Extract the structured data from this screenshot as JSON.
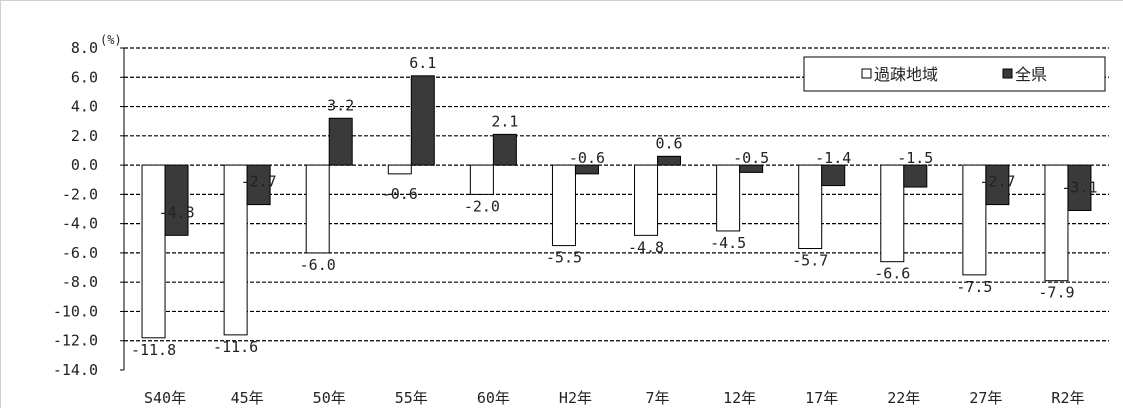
{
  "chart_data": {
    "type": "bar",
    "unit": "(%)",
    "categories": [
      "S40年",
      "45年",
      "50年",
      "55年",
      "60年",
      "H2年",
      "7年",
      "12年",
      "17年",
      "22年",
      "27年",
      "R2年"
    ],
    "series": [
      {
        "name": "過疎地域",
        "values": [
          -11.8,
          -11.6,
          -6.0,
          -0.6,
          -2.0,
          -5.5,
          -4.8,
          -4.5,
          -5.7,
          -6.6,
          -7.5,
          -7.9
        ],
        "labels": [
          "-11.8",
          "-11.6",
          "-6.0",
          "-0.6",
          "-2.0",
          "-5.5",
          "-4.8",
          "-4.5",
          "-5.7",
          "-6.6",
          "-7.5",
          "-7.9"
        ],
        "color": "#ffffff"
      },
      {
        "name": "全県",
        "values": [
          -4.8,
          -2.7,
          3.2,
          6.1,
          2.1,
          -0.6,
          0.6,
          -0.5,
          -1.4,
          -1.5,
          -2.7,
          -3.1
        ],
        "labels": [
          "-4.8",
          "-2.7",
          "3.2",
          "6.1",
          "2.1",
          "-0.6",
          "0.6",
          "-0.5",
          "-1.4",
          "-1.5",
          "-2.7",
          "-3.1"
        ],
        "color": "#3a3a3a"
      }
    ],
    "ylim": [
      -14.0,
      8.0
    ],
    "yticks": [
      "8.0",
      "6.0",
      "4.0",
      "2.0",
      "0.0",
      "-2.0",
      "-4.0",
      "-6.0",
      "-8.0",
      "-10.0",
      "-12.0",
      "-14.0"
    ],
    "grid": true,
    "legend_position": "top-right"
  }
}
